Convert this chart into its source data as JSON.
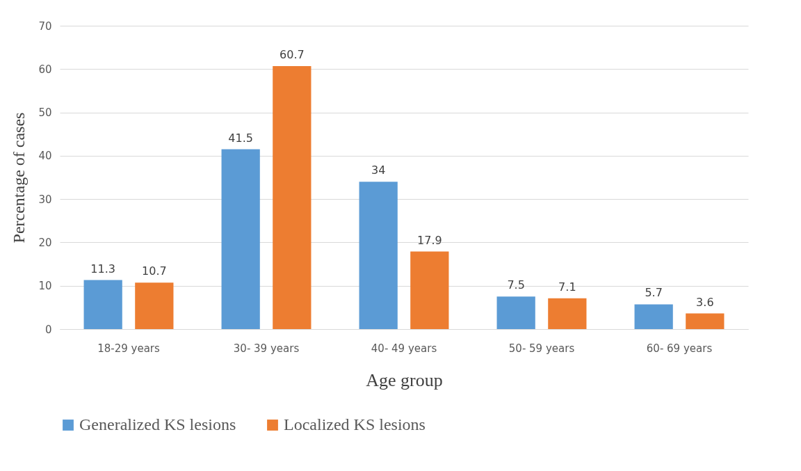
{
  "chart_data": {
    "type": "bar",
    "categories": [
      "18-29 years",
      "30- 39 years",
      "40- 49 years",
      "50- 59 years",
      "60- 69 years"
    ],
    "series": [
      {
        "name": "Generalized KS lesions",
        "color": "#5b9bd5",
        "values": [
          11.3,
          41.5,
          34,
          7.5,
          5.7
        ]
      },
      {
        "name": "Localized KS lesions",
        "color": "#ed7d31",
        "values": [
          10.7,
          60.7,
          17.9,
          7.1,
          3.6
        ]
      }
    ],
    "xlabel": "Age group",
    "ylabel": "Percentage of cases",
    "ylim": [
      0,
      70
    ],
    "yticks": [
      0,
      10,
      20,
      30,
      40,
      50,
      60,
      70
    ],
    "grid": "y",
    "legend": "bottom",
    "data_labels": true
  }
}
